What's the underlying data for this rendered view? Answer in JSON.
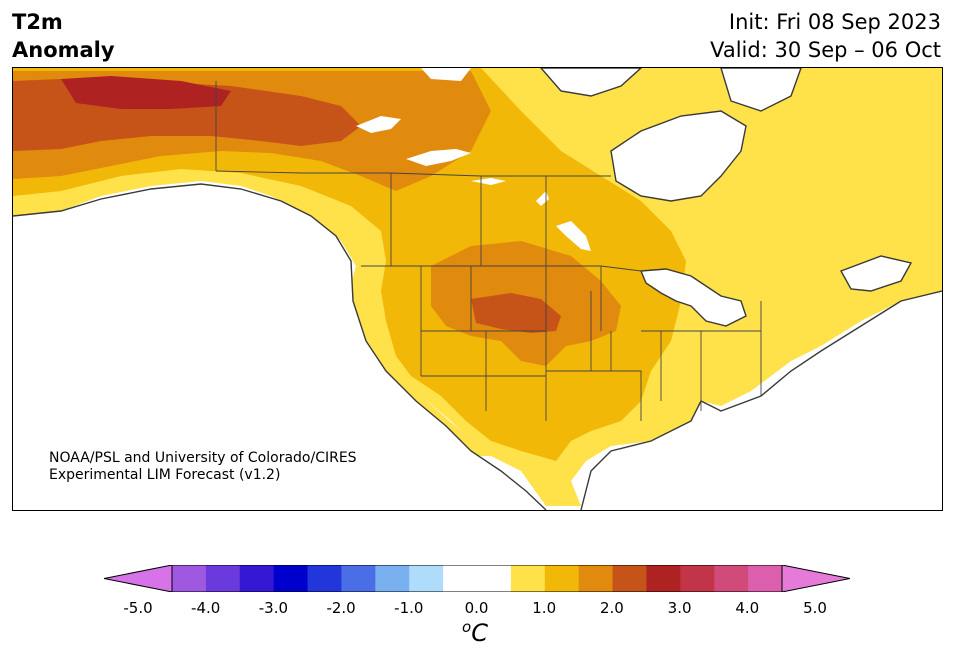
{
  "title": {
    "line1": "T2m",
    "line2": "Anomaly"
  },
  "init": {
    "line1": "Init: Fri 08 Sep 2023",
    "line2": "Valid: 30 Sep – 06 Oct"
  },
  "credit": {
    "line1": "NOAA/PSL and University of Colorado/CIRES",
    "line2": "Experimental LIM Forecast (v1.2)"
  },
  "colorbar": {
    "units_base": "C",
    "units_sup": "o",
    "ticks": [
      "-5.0",
      "-4.0",
      "-3.0",
      "-2.0",
      "-1.0",
      "0.0",
      "1.0",
      "2.0",
      "3.0",
      "4.0",
      "5.0"
    ],
    "tick_values": [
      -5,
      -4,
      -3,
      -2,
      -1,
      0,
      1,
      2,
      3,
      4,
      5
    ],
    "extend_low_color": "#d673e8",
    "extend_high_color": "#e67ad8",
    "colors": [
      "#d673e8",
      "#9e59e0",
      "#6b3adc",
      "#3418d4",
      "#0000cc",
      "#2236dc",
      "#4a6ee6",
      "#78b0f0",
      "#aedcfa",
      "#ffffff",
      "#ffffff",
      "#ffe14a",
      "#f2b807",
      "#e08a0e",
      "#c65418",
      "#ae2222",
      "#c23548",
      "#d04a7a",
      "#dc5fae",
      "#e67ad8"
    ]
  },
  "map_colors": {
    "land": "#ffffff",
    "water": "#ffffff",
    "c1": "#ffe14a",
    "c2": "#f2b807",
    "c3": "#e08a0e",
    "c4": "#c65418",
    "c5": "#ae2222",
    "coast": "#3a3a3a"
  }
}
